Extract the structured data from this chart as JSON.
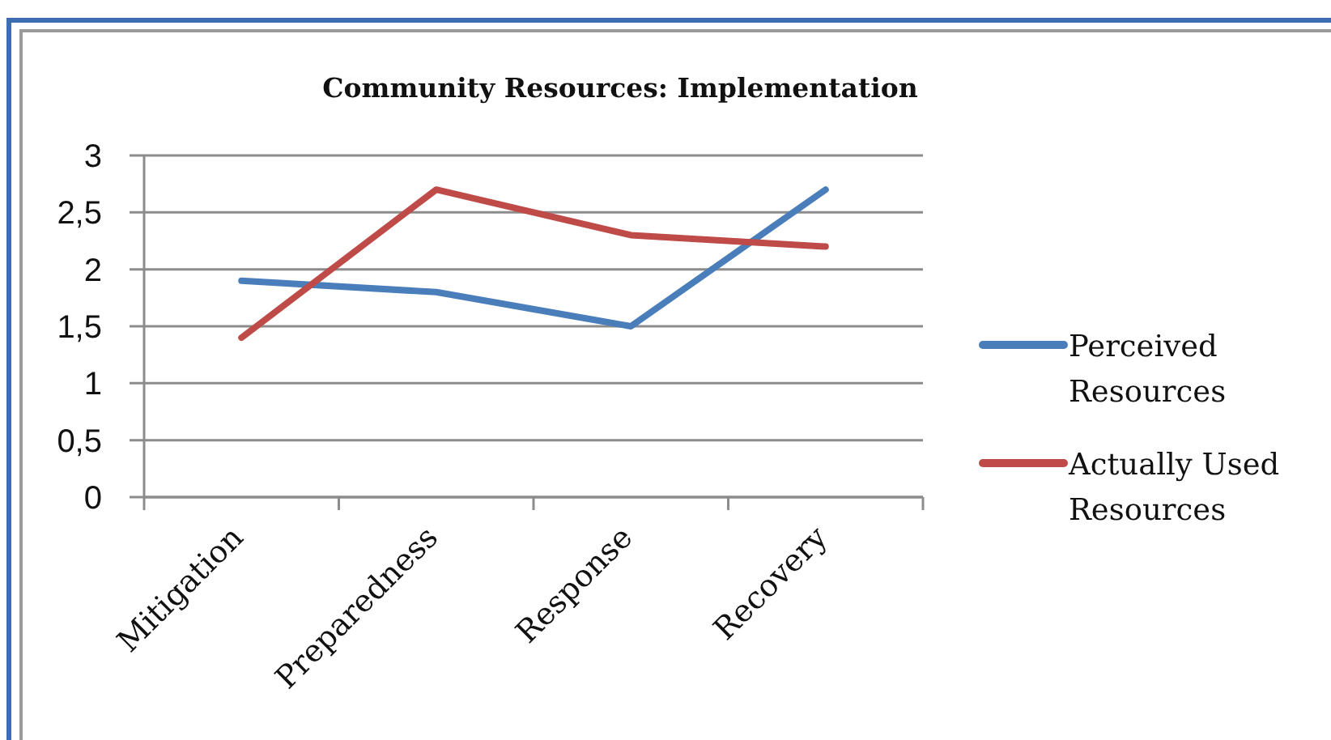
{
  "chart_data": {
    "type": "line",
    "title": "Community Resources: Implementation",
    "categories": [
      "Mitigation",
      "Preparedness",
      "Response",
      "Recovery"
    ],
    "series": [
      {
        "name": "Perceived Resources",
        "color": "#4a7ebb",
        "values": [
          1.9,
          1.8,
          1.5,
          2.7
        ]
      },
      {
        "name": "Actually Used Resources",
        "color": "#be4b48",
        "values": [
          1.4,
          2.7,
          2.3,
          2.2
        ]
      }
    ],
    "ylim": [
      0,
      3
    ],
    "yticks": [
      0,
      {
        "value": 0.5,
        "label": "0,5"
      },
      1,
      {
        "value": 1.5,
        "label": "1,5"
      },
      2,
      {
        "value": 2.5,
        "label": "2,5"
      },
      3
    ],
    "grid": "y",
    "legend": "right",
    "marker": "none",
    "line_style": "solid"
  }
}
